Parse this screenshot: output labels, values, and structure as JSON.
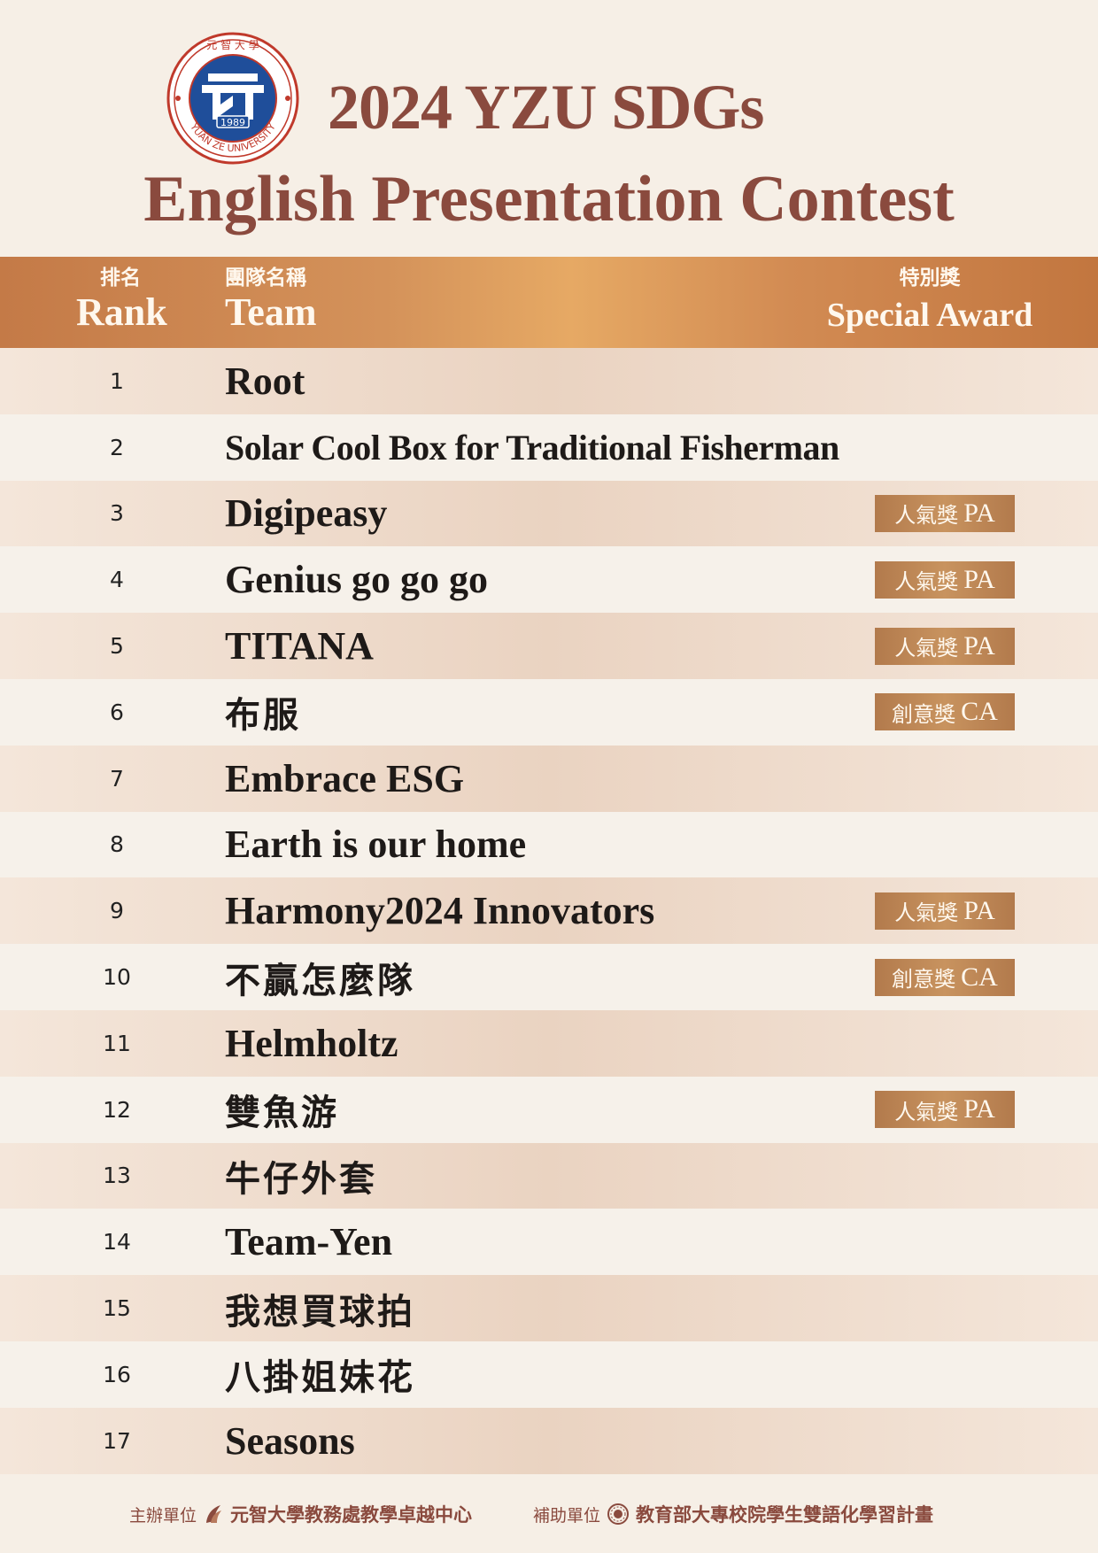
{
  "logo": {
    "year": "1989",
    "ring_text": "YUAN ZE UNIVERSITY",
    "top_chars": "元 智 大 學"
  },
  "title": {
    "line1": "2024 YZU SDGs",
    "line2": "English Presentation Contest"
  },
  "table": {
    "headers": {
      "rank_zh": "排名",
      "rank_en": "Rank",
      "team_zh": "團隊名稱",
      "team_en": "Team",
      "award_zh": "特別獎",
      "award_en": "Special Award"
    },
    "rows": [
      {
        "rank": "1",
        "team": "Root"
      },
      {
        "rank": "2",
        "team": "Solar Cool Box for Traditional Fisherman"
      },
      {
        "rank": "3",
        "team": "Digipeasy",
        "award_zh": "人氣獎",
        "award_en": "PA"
      },
      {
        "rank": "4",
        "team": "Genius go go go",
        "award_zh": "人氣獎",
        "award_en": "PA"
      },
      {
        "rank": "5",
        "team": "TITANA",
        "award_zh": "人氣獎",
        "award_en": "PA"
      },
      {
        "rank": "6",
        "team": "布服",
        "award_zh": "創意獎",
        "award_en": "CA"
      },
      {
        "rank": "7",
        "team": "Embrace ESG"
      },
      {
        "rank": "8",
        "team": "Earth is our home"
      },
      {
        "rank": "9",
        "team": "Harmony2024 Innovators",
        "award_zh": "人氣獎",
        "award_en": "PA"
      },
      {
        "rank": "10",
        "team": "不贏怎麼隊",
        "award_zh": "創意獎",
        "award_en": "CA"
      },
      {
        "rank": "11",
        "team": "Helmholtz"
      },
      {
        "rank": "12",
        "team": "雙魚游",
        "award_zh": "人氣獎",
        "award_en": "PA"
      },
      {
        "rank": "13",
        "team": "牛仔外套"
      },
      {
        "rank": "14",
        "team": "Team-Yen"
      },
      {
        "rank": "15",
        "team": "我想買球拍"
      },
      {
        "rank": "16",
        "team": "八掛姐妹花"
      },
      {
        "rank": "17",
        "team": "Seasons"
      }
    ]
  },
  "footer": {
    "organizer_label": "主辦單位",
    "organizer": "元智大學教務處教學卓越中心",
    "sponsor_label": "補助單位",
    "sponsor": "教育部大專校院學生雙語化學習計畫"
  },
  "colors": {
    "title": "#8a4a3e",
    "header_band": "#d4925a",
    "badge": "#c8935f",
    "background": "#f6efe6"
  }
}
